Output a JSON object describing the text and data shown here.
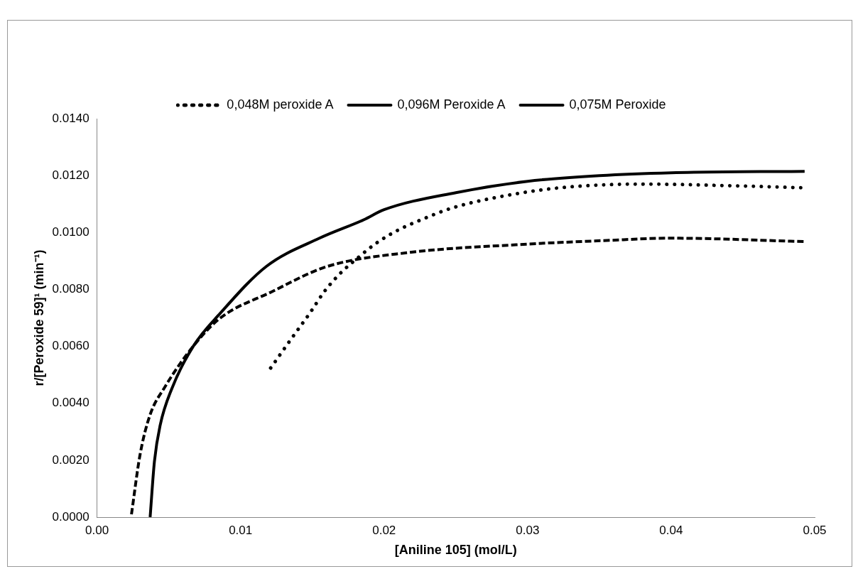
{
  "chart_data": {
    "type": "line",
    "xlabel": "[Aniline 105] (mol/L)",
    "ylabel": "r/[Peroxide 59]¹ (min⁻¹)",
    "xlim": [
      0,
      0.05
    ],
    "xticks": [
      {
        "value": 0,
        "label": "0.00"
      },
      0.01,
      0.02,
      0.03,
      0.04,
      0.05
    ],
    "ylim": [
      0,
      0.014
    ],
    "yticks": [
      {
        "value": 0,
        "label": "0.0000"
      },
      {
        "value": 0.002,
        "label": "0.0020"
      },
      {
        "value": 0.004,
        "label": "0.0040"
      },
      {
        "value": 0.006,
        "label": "0.0060"
      },
      {
        "value": 0.008,
        "label": "0.0080"
      },
      {
        "value": 0.01,
        "label": "0.0100"
      },
      {
        "value": 0.012,
        "label": "0.0120"
      },
      {
        "value": 0.014,
        "label": "0.0140"
      }
    ],
    "grid": false,
    "legend": "top",
    "marker": "none",
    "series": [
      {
        "name": "0,048M peroxide A",
        "color": "#000000",
        "line_style": "dotted",
        "x": [
          0.0121,
          0.0135,
          0.0149,
          0.0158,
          0.0169,
          0.0181,
          0.0195,
          0.021,
          0.0226,
          0.0248,
          0.0292,
          0.0329,
          0.0381,
          0.0436,
          0.0493
        ],
        "values": [
          0.00524,
          0.00624,
          0.00722,
          0.0079,
          0.00854,
          0.00908,
          0.00964,
          0.01009,
          0.01045,
          0.01087,
          0.01136,
          0.0116,
          0.0117,
          0.01165,
          0.01157
        ]
      },
      {
        "name": "0,096M Peroxide A",
        "color": "#000000",
        "line_style": "solid",
        "x": [
          0.0037,
          0.004,
          0.0044,
          0.0052,
          0.0067,
          0.0086,
          0.0118,
          0.0155,
          0.0186,
          0.02,
          0.025,
          0.03,
          0.035,
          0.04,
          0.0493
        ],
        "values": [
          0,
          0.00196,
          0.00323,
          0.0045,
          0.006,
          0.00717,
          0.00881,
          0.0098,
          0.01045,
          0.0108,
          0.0114,
          0.0118,
          0.012,
          0.0121,
          0.01215
        ]
      },
      {
        "name": "0,075M Peroxide",
        "color": "#000000",
        "line_style": "dashed",
        "x": [
          0.0024,
          0.003,
          0.0037,
          0.0047,
          0.0067,
          0.0086,
          0.0121,
          0.016,
          0.0218,
          0.0292,
          0.0355,
          0.04,
          0.0493
        ],
        "values": [
          0.0001,
          0.0022,
          0.0036,
          0.00455,
          0.006,
          0.007,
          0.0079,
          0.0088,
          0.0093,
          0.00957,
          0.00972,
          0.0098,
          0.00968
        ]
      }
    ]
  }
}
